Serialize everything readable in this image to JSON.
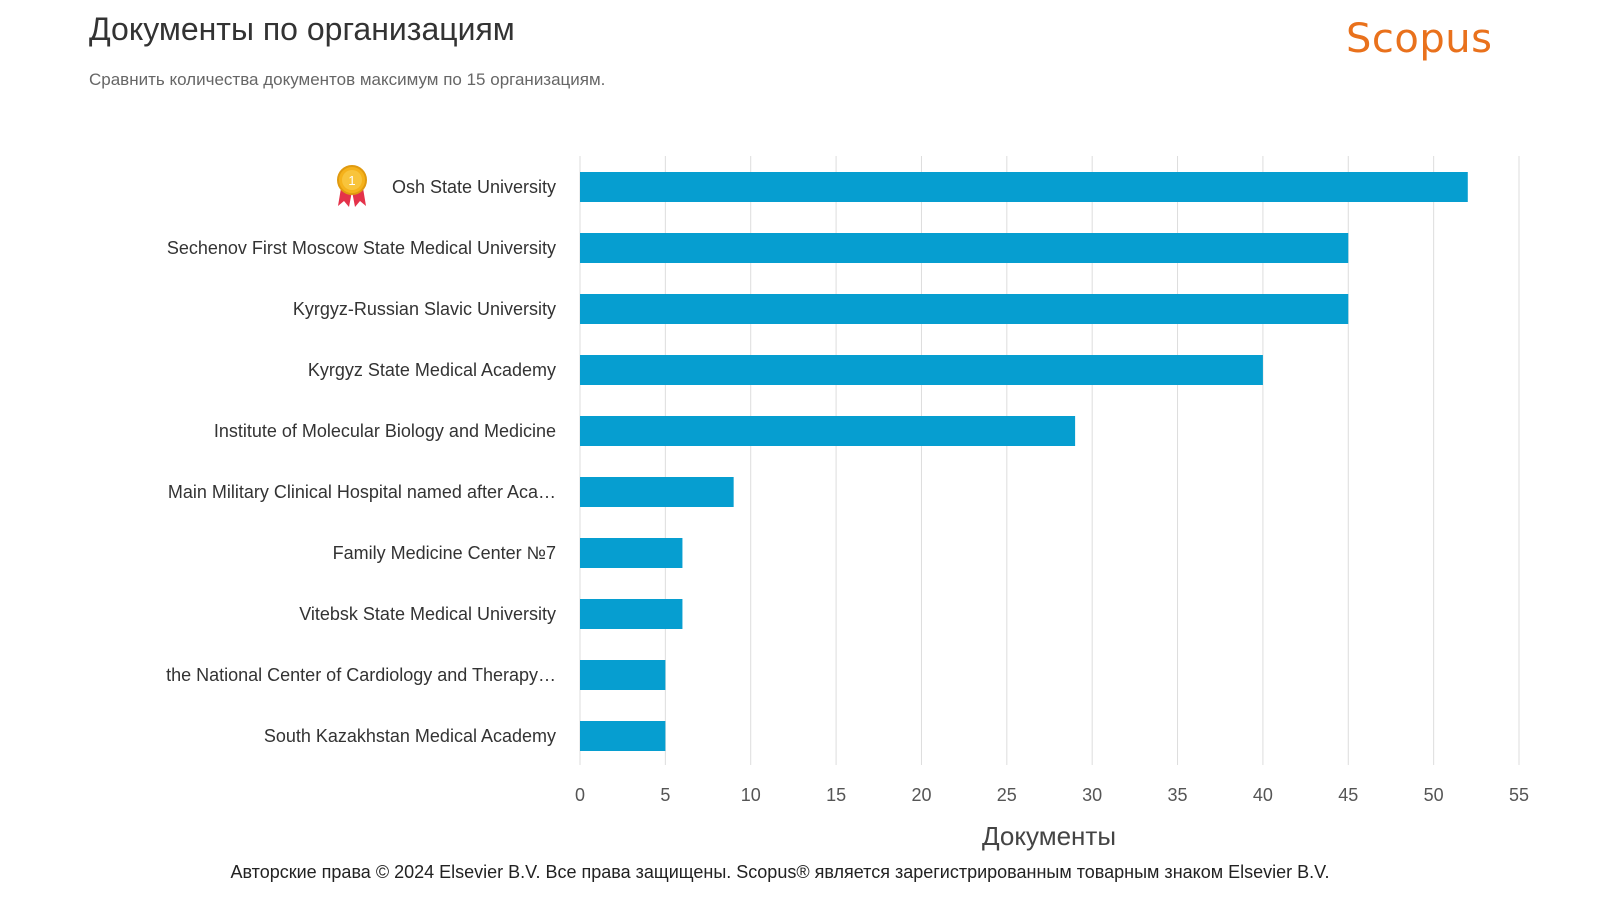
{
  "header": {
    "title": "Документы по организациям",
    "subtitle": "Сравнить количества документов максимум по 15 организациям.",
    "brand": "Scopus",
    "brand_color": "#e9711c"
  },
  "footer": {
    "copyright": "Авторские права © 2024 Elsevier B.V. Все права защищены. Scopus® является зарегистрированным товарным знаком Elsevier B.V."
  },
  "icons": {
    "top_rank": "award-medal-icon",
    "top_rank_label": "1"
  },
  "chart_data": {
    "type": "bar",
    "orientation": "horizontal",
    "categories": [
      "Osh State University",
      "Sechenov First Moscow State Medical University",
      "Kyrgyz-Russian Slavic University",
      "Kyrgyz State Medical Academy",
      "Institute of Molecular Biology and Medicine",
      "Main Military Clinical Hospital named after Aca…",
      "Family Medicine Center №7",
      "Vitebsk State Medical University",
      "the National Center of Cardiology and Therapy…",
      "South Kazakhstan Medical Academy"
    ],
    "values": [
      52,
      45,
      45,
      40,
      29,
      9,
      6,
      6,
      5,
      5
    ],
    "xlabel": "Документы",
    "ylabel": "",
    "xlim": [
      0,
      55
    ],
    "xticks": [
      0,
      5,
      10,
      15,
      20,
      25,
      30,
      35,
      40,
      45,
      50,
      55
    ],
    "grid": true,
    "bar_color": "#069ed0",
    "grid_color": "#dddddd"
  }
}
